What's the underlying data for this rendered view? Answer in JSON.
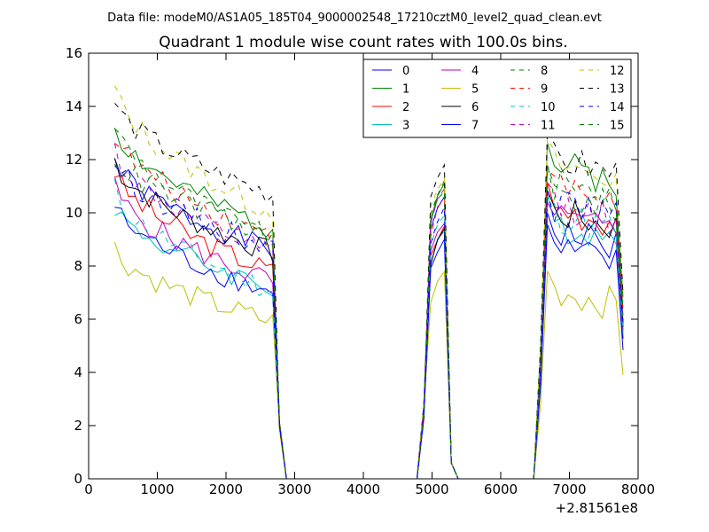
{
  "page": {
    "suptitle": "Data file: modeM0/AS1A05_185T04_9000002548_17210cztM0_level2_quad_clean.evt"
  },
  "chart_data": {
    "type": "line",
    "title": "Quadrant 1 module wise count rates with 100.0s bins.",
    "xlabel": "",
    "ylabel": "",
    "x_offset_label": "+2.81561e8",
    "xlim": [
      0,
      8000
    ],
    "ylim": [
      0,
      16
    ],
    "xticks": [
      0,
      1000,
      2000,
      3000,
      4000,
      5000,
      6000,
      7000,
      8000
    ],
    "yticks": [
      0,
      2,
      4,
      6,
      8,
      10,
      12,
      14,
      16
    ],
    "grid": false,
    "legend_position": "top-right",
    "legend_columns": 4,
    "x": [
      380,
      480,
      580,
      680,
      780,
      880,
      980,
      1080,
      1180,
      1280,
      1380,
      1480,
      1580,
      1680,
      1780,
      1880,
      1980,
      2080,
      2180,
      2280,
      2380,
      2480,
      2580,
      2680,
      2780,
      2880,
      2980,
      3080,
      3180,
      3280,
      3380,
      3480,
      3580,
      3680,
      3780,
      3880,
      3980,
      4080,
      4180,
      4280,
      4380,
      4480,
      4580,
      4680,
      4780,
      4880,
      4980,
      5080,
      5180,
      5280,
      5380,
      5480,
      5580,
      5680,
      5780,
      5880,
      5980,
      6080,
      6180,
      6280,
      6380,
      6480,
      6580,
      6680,
      6780,
      6880,
      6980,
      7080,
      7180,
      7280,
      7380,
      7480,
      7580,
      7680,
      7780
    ],
    "series": [
      {
        "name": "0",
        "color": "#0000ff",
        "style": "solid",
        "start": 12.0,
        "end": 8.6,
        "peak": 10.6,
        "late": 8.5,
        "seed": 1
      },
      {
        "name": "1",
        "color": "#008000",
        "style": "solid",
        "start": 13.3,
        "end": 9.4,
        "peak": 11.1,
        "late": 11.0,
        "seed": 2
      },
      {
        "name": "2",
        "color": "#ff0000",
        "style": "solid",
        "start": 11.6,
        "end": 7.8,
        "peak": 9.5,
        "late": 9.4,
        "seed": 3
      },
      {
        "name": "3",
        "color": "#00bfbf",
        "style": "solid",
        "start": 10.3,
        "end": 7.2,
        "peak": 9.3,
        "late": 8.8,
        "seed": 4
      },
      {
        "name": "4",
        "color": "#bf00bf",
        "style": "solid",
        "start": 11.0,
        "end": 7.4,
        "peak": 9.6,
        "late": 9.0,
        "seed": 5
      },
      {
        "name": "5",
        "color": "#bfbf00",
        "style": "solid",
        "start": 8.7,
        "end": 5.9,
        "peak": 7.8,
        "late": 6.3,
        "seed": 6
      },
      {
        "name": "6",
        "color": "#000000",
        "style": "solid",
        "start": 12.0,
        "end": 8.5,
        "peak": 9.4,
        "late": 9.2,
        "seed": 7
      },
      {
        "name": "7",
        "color": "#0000ff",
        "style": "solid",
        "start": 10.3,
        "end": 7.0,
        "peak": 9.0,
        "late": 7.8,
        "seed": 8
      },
      {
        "name": "8",
        "color": "#008000",
        "style": "dashed",
        "start": 13.4,
        "end": 9.0,
        "peak": 11.2,
        "late": 9.9,
        "seed": 9
      },
      {
        "name": "9",
        "color": "#ff0000",
        "style": "dashed",
        "start": 13.0,
        "end": 9.1,
        "peak": 10.5,
        "late": 10.2,
        "seed": 10
      },
      {
        "name": "10",
        "color": "#00bfbf",
        "style": "dashed",
        "start": 10.9,
        "end": 7.1,
        "peak": 9.9,
        "late": 9.1,
        "seed": 11
      },
      {
        "name": "11",
        "color": "#bf00bf",
        "style": "dashed",
        "start": 12.4,
        "end": 8.4,
        "peak": 10.9,
        "late": 9.5,
        "seed": 12
      },
      {
        "name": "12",
        "color": "#bfbf00",
        "style": "dashed",
        "start": 14.7,
        "end": 10.0,
        "peak": 11.3,
        "late": 11.0,
        "seed": 13
      },
      {
        "name": "13",
        "color": "#000000",
        "style": "dashed",
        "start": 14.2,
        "end": 10.7,
        "peak": 11.8,
        "late": 11.2,
        "seed": 14
      },
      {
        "name": "14",
        "color": "#0000ff",
        "style": "dashed",
        "start": 12.0,
        "end": 8.7,
        "peak": 10.2,
        "late": 9.5,
        "seed": 15
      },
      {
        "name": "15",
        "color": "#008000",
        "style": "dashed",
        "start": 12.2,
        "end": 9.2,
        "peak": 10.8,
        "late": 10.3,
        "seed": 16
      }
    ]
  }
}
